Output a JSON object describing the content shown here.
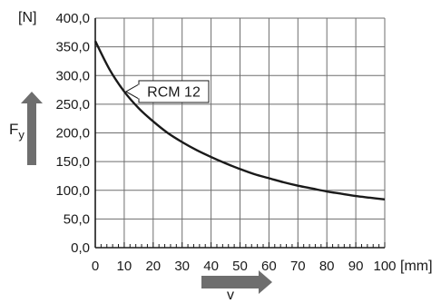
{
  "chart_data": {
    "type": "line",
    "title": "",
    "xlabel": "v",
    "ylabel_main": "F",
    "ylabel_sub": "y",
    "x_unit": "[mm]",
    "y_unit": "[N]",
    "xlim": [
      0,
      100
    ],
    "ylim": [
      0,
      400
    ],
    "grid": true,
    "x_ticks": [
      "0",
      "10",
      "20",
      "30",
      "40",
      "50",
      "60",
      "70",
      "80",
      "90",
      "100"
    ],
    "x_tick_values": [
      0,
      10,
      20,
      30,
      40,
      50,
      60,
      70,
      80,
      90,
      100
    ],
    "y_ticks": [
      "0,0",
      "50,0",
      "100,0",
      "150,0",
      "200,0",
      "250,0",
      "300,0",
      "350,0",
      "400,0"
    ],
    "y_tick_values": [
      0,
      50,
      100,
      150,
      200,
      250,
      300,
      350,
      400
    ],
    "series": [
      {
        "name": "RCM 12",
        "color": "#1a1a1a",
        "x": [
          0,
          5,
          10,
          15,
          20,
          25,
          30,
          35,
          40,
          45,
          50,
          55,
          60,
          65,
          70,
          75,
          80,
          85,
          90,
          95,
          100
        ],
        "y": [
          360,
          310,
          272,
          243,
          220,
          200,
          184,
          170,
          158,
          147,
          137,
          128,
          121,
          114,
          108,
          103,
          98,
          94,
          90,
          87,
          84
        ]
      }
    ],
    "annotation": {
      "text": "RCM 12",
      "x": 10,
      "y": 272
    },
    "arrow_color": "#6e6e6e",
    "grid_color": "#6e6e6e",
    "axis_color": "#1a1a1a"
  }
}
